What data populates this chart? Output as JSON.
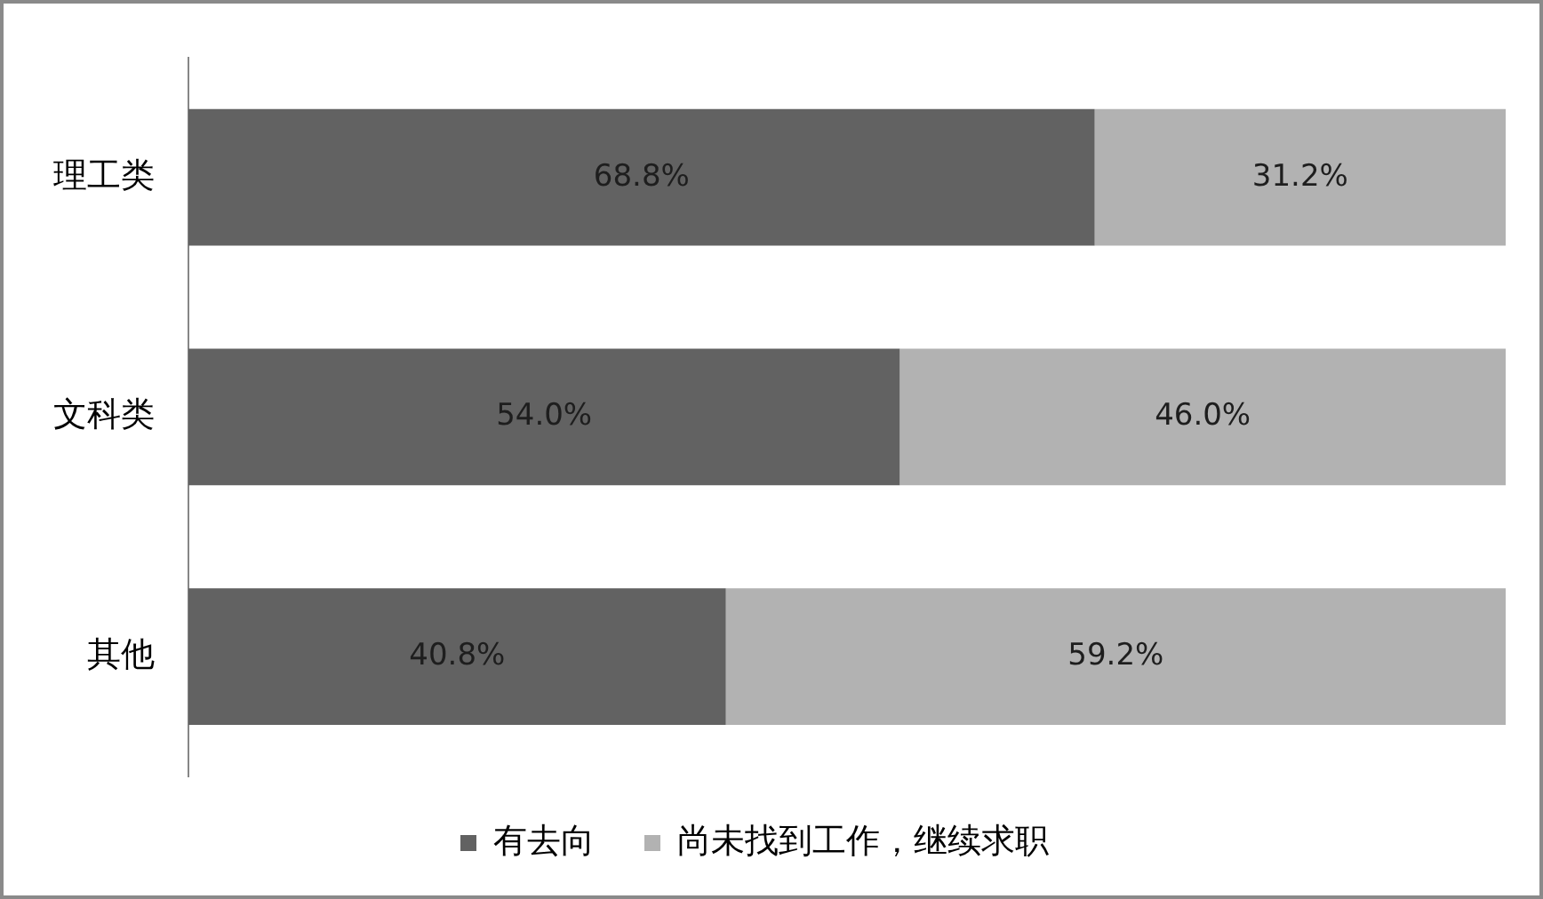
{
  "chart_data": {
    "type": "bar",
    "orientation": "horizontal",
    "stacked": true,
    "categories": [
      "理工类",
      "文科类",
      "其他"
    ],
    "series": [
      {
        "name": "有去向",
        "color": "#626262",
        "values": [
          68.8,
          54.0,
          40.8
        ],
        "value_labels": [
          "68.8%",
          "54.0%",
          "40.8%"
        ]
      },
      {
        "name": "尚未找到工作，继续求职",
        "color": "#b2b2b2",
        "values": [
          31.2,
          46.0,
          59.2
        ],
        "value_labels": [
          "31.2%",
          "46.0%",
          "59.2%"
        ]
      }
    ],
    "xlim": [
      0,
      100
    ],
    "tick_labels": "y",
    "grid": false,
    "legend": "bottom"
  }
}
